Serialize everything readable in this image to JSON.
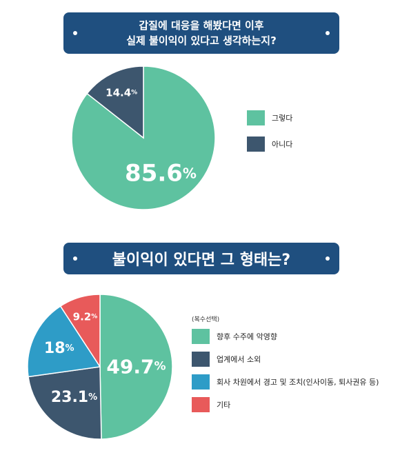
{
  "chart_data": [
    {
      "type": "pie",
      "title": "갑질에 대응을 해봤다면 이후\n실제 불이익이 있다고 생각하는지?",
      "slices": [
        {
          "label": "그렇다",
          "value": 85.6,
          "display": "85.6",
          "color": "#5ec2a0"
        },
        {
          "label": "아니다",
          "value": 14.4,
          "display": "14.4",
          "color": "#3d566e"
        }
      ],
      "legend_position": "right"
    },
    {
      "type": "pie",
      "title": "불이익이 있다면 그 형태는?",
      "legend_note": "(복수선택)",
      "slices": [
        {
          "label": "향후 수주에 악영향",
          "value": 49.7,
          "display": "49.7",
          "color": "#5ec2a0"
        },
        {
          "label": "업계에서 소외",
          "value": 23.1,
          "display": "23.1",
          "color": "#3d566e"
        },
        {
          "label": "회사 차원에서 경고 및 조치(인사이동, 퇴사권유 등)",
          "value": 18,
          "display": "18",
          "color": "#2e9cc7"
        },
        {
          "label": "기타",
          "value": 9.2,
          "display": "9.2",
          "color": "#e85a5a"
        }
      ],
      "legend_position": "right"
    }
  ],
  "percent_sign": "%"
}
